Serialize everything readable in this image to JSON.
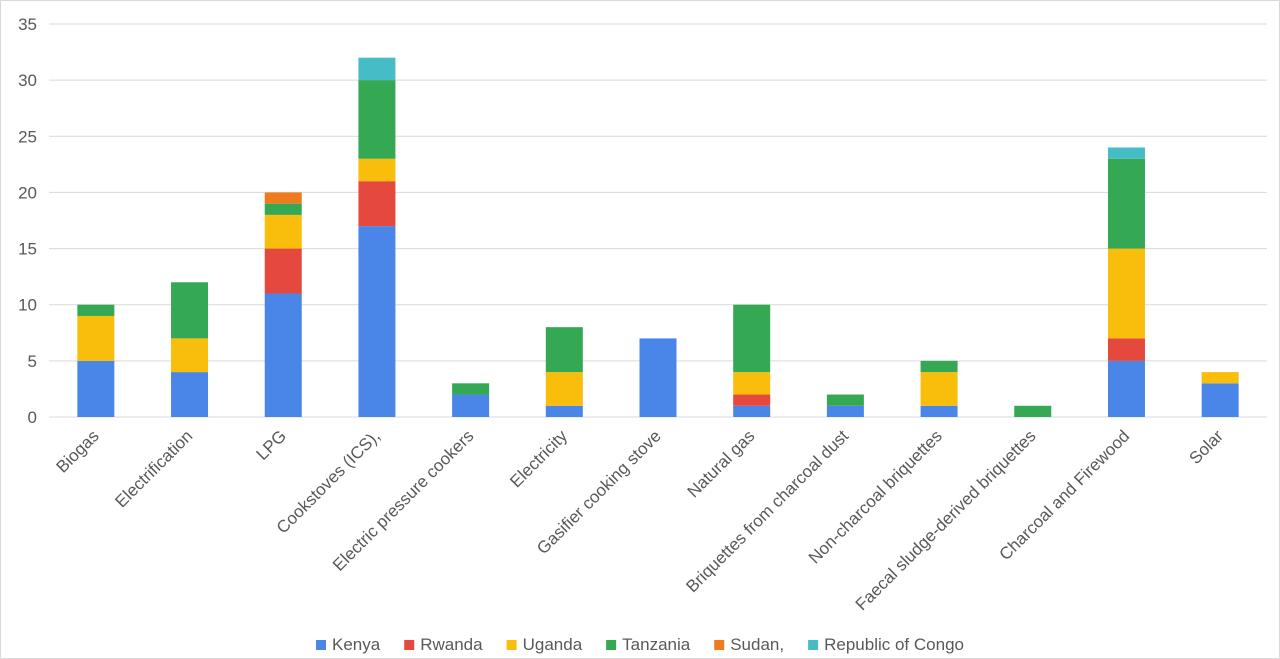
{
  "chart_data": {
    "type": "bar",
    "stacked": true,
    "title": "",
    "xlabel": "",
    "ylabel": "",
    "ylim": [
      0,
      35
    ],
    "yticks": [
      0,
      5,
      10,
      15,
      20,
      25,
      30,
      35
    ],
    "grid": true,
    "legend_position": "bottom",
    "categories": [
      "Biogas",
      "Electrification",
      "LPG",
      "Cookstoves (ICS),",
      "Electric pressure cookers",
      "Electricity",
      "Gasifier cooking stove",
      "Natural gas",
      "Briquettes from  charcoal dust",
      "Non-charcoal briquettes",
      "Faecal sludge-derived briquettes",
      "Charcoal and Firewood",
      "Solar"
    ],
    "series": [
      {
        "name": "Kenya",
        "color": "#4a86e8",
        "values": [
          5,
          4,
          11,
          17,
          2,
          1,
          7,
          1,
          1,
          1,
          0,
          5,
          3
        ]
      },
      {
        "name": "Rwanda",
        "color": "#e5483d",
        "values": [
          0,
          0,
          4,
          4,
          0,
          0,
          0,
          1,
          0,
          0,
          0,
          2,
          0
        ]
      },
      {
        "name": "Uganda",
        "color": "#f9bd0c",
        "values": [
          4,
          3,
          3,
          2,
          0,
          3,
          0,
          2,
          0,
          3,
          0,
          8,
          1
        ]
      },
      {
        "name": "Tanzania",
        "color": "#34a853",
        "values": [
          1,
          5,
          1,
          7,
          1,
          4,
          0,
          6,
          1,
          1,
          1,
          8,
          0
        ]
      },
      {
        "name": "Sudan,",
        "color": "#f07b1d",
        "values": [
          0,
          0,
          1,
          0,
          0,
          0,
          0,
          0,
          0,
          0,
          0,
          0,
          0
        ]
      },
      {
        "name": "Republic of Congo",
        "color": "#46bdc6",
        "values": [
          0,
          0,
          0,
          2,
          0,
          0,
          0,
          0,
          0,
          0,
          0,
          1,
          0
        ]
      }
    ]
  }
}
